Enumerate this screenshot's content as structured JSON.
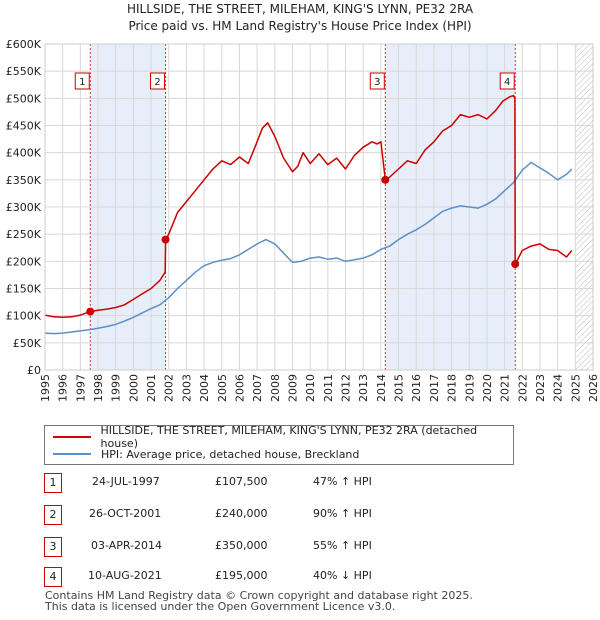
{
  "title": {
    "line1": "HILLSIDE, THE STREET, MILEHAM, KING'S LYNN, PE32 2RA",
    "line2": "Price paid vs. HM Land Registry's House Price Index (HPI)"
  },
  "colors": {
    "property_line": "#cc0000",
    "hpi_line": "#5b8fc9",
    "shade": "#e8eef9",
    "grid": "#d8d8d8",
    "marker_border": "#cc0000"
  },
  "chart_data": {
    "type": "line",
    "xlim": [
      1995,
      2026
    ],
    "ylim": [
      0,
      600000
    ],
    "xticks": [
      "1995",
      "1996",
      "1997",
      "1998",
      "1999",
      "2000",
      "2001",
      "2002",
      "2003",
      "2004",
      "2005",
      "2006",
      "2007",
      "2008",
      "2009",
      "2010",
      "2011",
      "2012",
      "2013",
      "2014",
      "2015",
      "2016",
      "2017",
      "2018",
      "2019",
      "2020",
      "2021",
      "2022",
      "2023",
      "2024",
      "2025",
      "2026"
    ],
    "ytick_values": [
      0,
      50000,
      100000,
      150000,
      200000,
      250000,
      300000,
      350000,
      400000,
      450000,
      500000,
      550000,
      600000
    ],
    "ytick_labels": [
      "£0",
      "£50K",
      "£100K",
      "£150K",
      "£200K",
      "£250K",
      "£300K",
      "£350K",
      "£400K",
      "£450K",
      "£500K",
      "£550K",
      "£600K"
    ],
    "series": [
      {
        "name": "HILLSIDE, THE STREET, MILEHAM, KING'S LYNN, PE32 2RA (detached house)",
        "x": [
          1995.0,
          1995.5,
          1996.0,
          1996.5,
          1997.0,
          1997.56,
          1998.0,
          1998.5,
          1999.0,
          1999.5,
          2000.0,
          2000.5,
          2001.0,
          2001.5,
          2001.8,
          2001.82,
          2002.0,
          2002.5,
          2003.0,
          2003.5,
          2004.0,
          2004.5,
          2005.0,
          2005.5,
          2006.0,
          2006.5,
          2007.0,
          2007.3,
          2007.6,
          2008.0,
          2008.5,
          2009.0,
          2009.3,
          2009.6,
          2010.0,
          2010.5,
          2011.0,
          2011.5,
          2012.0,
          2012.5,
          2013.0,
          2013.5,
          2013.8,
          2014.0,
          2014.25,
          2014.5,
          2015.0,
          2015.5,
          2016.0,
          2016.5,
          2017.0,
          2017.5,
          2018.0,
          2018.5,
          2019.0,
          2019.5,
          2020.0,
          2020.5,
          2020.9,
          2021.3,
          2021.5,
          2021.58,
          2021.6,
          2022.0,
          2022.5,
          2023.0,
          2023.5,
          2024.0,
          2024.5,
          2024.8
        ],
        "y": [
          101000,
          98000,
          97000,
          98000,
          101000,
          107500,
          110000,
          112000,
          115000,
          120000,
          130000,
          140000,
          150000,
          165000,
          180000,
          240000,
          250000,
          290000,
          310000,
          330000,
          350000,
          370000,
          385000,
          378000,
          392000,
          380000,
          420000,
          445000,
          455000,
          430000,
          390000,
          365000,
          375000,
          400000,
          380000,
          398000,
          378000,
          390000,
          370000,
          395000,
          410000,
          420000,
          416000,
          420000,
          350000,
          355000,
          370000,
          385000,
          380000,
          405000,
          420000,
          440000,
          450000,
          470000,
          465000,
          470000,
          462000,
          478000,
          495000,
          503000,
          505000,
          500000,
          195000,
          220000,
          228000,
          232000,
          222000,
          220000,
          208000,
          220000
        ]
      },
      {
        "name": "HPI: Average price, detached house, Breckland",
        "x": [
          1995.0,
          1995.5,
          1996.0,
          1996.5,
          1997.0,
          1997.5,
          1998.0,
          1998.5,
          1999.0,
          1999.5,
          2000.0,
          2000.5,
          2001.0,
          2001.5,
          2002.0,
          2002.5,
          2003.0,
          2003.5,
          2004.0,
          2004.5,
          2005.0,
          2005.5,
          2006.0,
          2006.5,
          2007.0,
          2007.5,
          2008.0,
          2008.5,
          2009.0,
          2009.5,
          2010.0,
          2010.5,
          2011.0,
          2011.5,
          2012.0,
          2012.5,
          2013.0,
          2013.5,
          2014.0,
          2014.5,
          2015.0,
          2015.5,
          2016.0,
          2016.5,
          2017.0,
          2017.5,
          2018.0,
          2018.5,
          2019.0,
          2019.5,
          2020.0,
          2020.5,
          2021.0,
          2021.5,
          2022.0,
          2022.5,
          2023.0,
          2023.5,
          2024.0,
          2024.5,
          2024.8
        ],
        "y": [
          68000,
          67000,
          68000,
          70000,
          72000,
          74000,
          77000,
          80000,
          84000,
          90000,
          97000,
          105000,
          113000,
          120000,
          133000,
          150000,
          165000,
          180000,
          192000,
          198000,
          202000,
          205000,
          212000,
          222000,
          232000,
          240000,
          232000,
          215000,
          198000,
          200000,
          206000,
          208000,
          204000,
          206000,
          200000,
          203000,
          206000,
          212000,
          222000,
          228000,
          240000,
          250000,
          258000,
          268000,
          280000,
          292000,
          298000,
          302000,
          300000,
          298000,
          305000,
          315000,
          330000,
          345000,
          368000,
          382000,
          372000,
          362000,
          350000,
          360000,
          370000
        ]
      }
    ],
    "sales": [
      {
        "label": "1",
        "x": 1997.56,
        "price": 107500
      },
      {
        "label": "2",
        "x": 2001.82,
        "price": 240000
      },
      {
        "label": "3",
        "x": 2014.25,
        "price": 350000
      },
      {
        "label": "4",
        "x": 2021.6,
        "price": 195000
      }
    ]
  },
  "legend": {
    "property": "HILLSIDE, THE STREET, MILEHAM, KING'S LYNN, PE32 2RA (detached house)",
    "hpi": "HPI: Average price, detached house, Breckland"
  },
  "transactions": [
    {
      "num": "1",
      "date": "24-JUL-1997",
      "price": "£107,500",
      "hpi": "47% ↑ HPI"
    },
    {
      "num": "2",
      "date": "26-OCT-2001",
      "price": "£240,000",
      "hpi": "90% ↑ HPI"
    },
    {
      "num": "3",
      "date": "03-APR-2014",
      "price": "£350,000",
      "hpi": "55% ↑ HPI"
    },
    {
      "num": "4",
      "date": "10-AUG-2021",
      "price": "£195,000",
      "hpi": "40% ↓ HPI"
    }
  ],
  "footer": {
    "line1": "Contains HM Land Registry data © Crown copyright and database right 2025.",
    "line2": "This data is licensed under the Open Government Licence v3.0."
  }
}
